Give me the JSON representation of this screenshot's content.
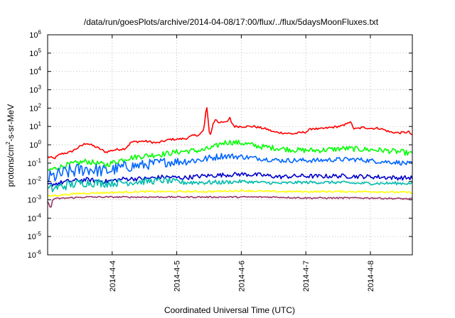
{
  "chart_data": {
    "type": "line",
    "title": "/data/run/goesPlots/archive/2014-04-08/17:00/flux/../flux/5daysMoonFluxes.txt",
    "xlabel": "Coordinated Universal Time (UTC)",
    "ylabel": "protons/cm²-s-sr-MeV",
    "ylabel_parts": {
      "a": "protons/cm",
      "sup": "2",
      "b": "-s-sr-MeV"
    },
    "yscale": "log",
    "ylim_exp": [
      -6,
      6
    ],
    "y_ticks": [
      {
        "base": "10",
        "exp": "-6",
        "e": -6
      },
      {
        "base": "10",
        "exp": "-5",
        "e": -5
      },
      {
        "base": "10",
        "exp": "-4",
        "e": -4
      },
      {
        "base": "10",
        "exp": "-3",
        "e": -3
      },
      {
        "base": "10",
        "exp": "-2",
        "e": -2
      },
      {
        "base": "10",
        "exp": "-1",
        "e": -1
      },
      {
        "base": "10",
        "exp": "0",
        "e": 0
      },
      {
        "base": "10",
        "exp": "1",
        "e": 1
      },
      {
        "base": "10",
        "exp": "2",
        "e": 2
      },
      {
        "base": "10",
        "exp": "3",
        "e": 3
      },
      {
        "base": "10",
        "exp": "4",
        "e": 4
      },
      {
        "base": "10",
        "exp": "5",
        "e": 5
      },
      {
        "base": "10",
        "exp": "6",
        "e": 6
      }
    ],
    "xlim": [
      "2014-04-03",
      "2014-04-08"
    ],
    "x_ticks": [
      {
        "label": "2014-4-4",
        "day": 1
      },
      {
        "label": "2014-4-5",
        "day": 2
      },
      {
        "label": "2014-4-6",
        "day": 3
      },
      {
        "label": "2014-4-7",
        "day": 4
      },
      {
        "label": "2014-4-8",
        "day": 5
      }
    ],
    "x_day_range": [
      0,
      5.65
    ],
    "grid": true,
    "series": [
      {
        "color": "#ff0000",
        "noise": 0.06,
        "points": [
          [
            0,
            -0.65
          ],
          [
            0.1,
            -0.75
          ],
          [
            0.2,
            -0.5
          ],
          [
            0.35,
            -0.4
          ],
          [
            0.5,
            -0.1
          ],
          [
            0.6,
            0.1
          ],
          [
            0.7,
            -0.05
          ],
          [
            0.8,
            -0.2
          ],
          [
            0.9,
            -0.4
          ],
          [
            1.0,
            -0.3
          ],
          [
            1.2,
            -0.2
          ],
          [
            1.3,
            0.15
          ],
          [
            1.5,
            0.2
          ],
          [
            1.7,
            0.1
          ],
          [
            1.9,
            0.3
          ],
          [
            2.0,
            0.3
          ],
          [
            2.15,
            0.35
          ],
          [
            2.25,
            0.5
          ],
          [
            2.35,
            0.55
          ],
          [
            2.42,
            0.8
          ],
          [
            2.45,
            1.8
          ],
          [
            2.47,
            2.0
          ],
          [
            2.5,
            0.8
          ],
          [
            2.52,
            0.5
          ],
          [
            2.56,
            1.1
          ],
          [
            2.6,
            1.4
          ],
          [
            2.65,
            1.2
          ],
          [
            2.7,
            1.3
          ],
          [
            2.75,
            1.2
          ],
          [
            2.8,
            1.3
          ],
          [
            2.82,
            1.5
          ],
          [
            2.85,
            1.2
          ],
          [
            2.9,
            1.0
          ],
          [
            3.2,
            1.0
          ],
          [
            3.4,
            0.85
          ],
          [
            3.5,
            0.7
          ],
          [
            3.8,
            0.6
          ],
          [
            4.0,
            0.7
          ],
          [
            4.1,
            0.9
          ],
          [
            4.2,
            0.85
          ],
          [
            4.4,
            0.95
          ],
          [
            4.6,
            1.05
          ],
          [
            4.65,
            1.25
          ],
          [
            4.7,
            1.2
          ],
          [
            4.75,
            0.85
          ],
          [
            4.9,
            0.95
          ],
          [
            5.0,
            0.9
          ],
          [
            5.15,
            0.9
          ],
          [
            5.3,
            0.7
          ],
          [
            5.45,
            0.65
          ],
          [
            5.6,
            0.7
          ],
          [
            5.65,
            0.5
          ]
        ]
      },
      {
        "color": "#00ff00",
        "noise": 0.15,
        "points": [
          [
            0,
            -1.4
          ],
          [
            0.3,
            -1.1
          ],
          [
            0.6,
            -0.9
          ],
          [
            0.9,
            -1.1
          ],
          [
            1.2,
            -0.75
          ],
          [
            1.5,
            -0.6
          ],
          [
            1.8,
            -0.5
          ],
          [
            2.1,
            -0.35
          ],
          [
            2.4,
            -0.3
          ],
          [
            2.6,
            -0.1
          ],
          [
            2.7,
            0.1
          ],
          [
            2.8,
            0.15
          ],
          [
            3.0,
            0.1
          ],
          [
            3.3,
            -0.1
          ],
          [
            3.6,
            -0.2
          ],
          [
            3.9,
            -0.3
          ],
          [
            4.2,
            -0.3
          ],
          [
            4.6,
            -0.2
          ],
          [
            4.9,
            -0.25
          ],
          [
            5.2,
            -0.3
          ],
          [
            5.5,
            -0.4
          ],
          [
            5.65,
            -0.5
          ]
        ]
      },
      {
        "color": "#0066ff",
        "noise": 0.28,
        "points": [
          [
            0,
            -1.85
          ],
          [
            0.3,
            -1.5
          ],
          [
            0.6,
            -1.3
          ],
          [
            0.9,
            -1.45
          ],
          [
            1.2,
            -1.2
          ],
          [
            1.5,
            -1.1
          ],
          [
            1.8,
            -0.95
          ],
          [
            2.1,
            -0.9
          ],
          [
            2.4,
            -0.8
          ],
          [
            2.7,
            -0.6
          ],
          [
            3.0,
            -0.65
          ],
          [
            3.3,
            -0.75
          ],
          [
            3.6,
            -0.85
          ],
          [
            3.9,
            -0.85
          ],
          [
            4.2,
            -0.85
          ],
          [
            4.5,
            -0.8
          ],
          [
            4.8,
            -0.8
          ],
          [
            5.1,
            -0.9
          ],
          [
            5.4,
            -0.95
          ],
          [
            5.65,
            -1.05
          ]
        ]
      },
      {
        "color": "#0000cc",
        "noise": 0.12,
        "points": [
          [
            0,
            -2.2
          ],
          [
            0.3,
            -2.0
          ],
          [
            0.6,
            -1.9
          ],
          [
            0.9,
            -2.0
          ],
          [
            1.2,
            -1.85
          ],
          [
            1.5,
            -1.85
          ],
          [
            1.8,
            -1.75
          ],
          [
            2.1,
            -1.8
          ],
          [
            2.4,
            -1.7
          ],
          [
            2.7,
            -1.65
          ],
          [
            3.0,
            -1.6
          ],
          [
            3.3,
            -1.65
          ],
          [
            3.6,
            -1.75
          ],
          [
            3.9,
            -1.7
          ],
          [
            4.2,
            -1.72
          ],
          [
            4.5,
            -1.7
          ],
          [
            4.8,
            -1.72
          ],
          [
            5.1,
            -1.75
          ],
          [
            5.4,
            -1.8
          ],
          [
            5.65,
            -1.8
          ]
        ]
      },
      {
        "color": "#00bbaa",
        "noise": 0.18,
        "points": [
          [
            0,
            -2.45
          ],
          [
            0.3,
            -2.2
          ],
          [
            0.6,
            -2.05
          ],
          [
            0.9,
            -2.1
          ],
          [
            1.2,
            -2.05
          ],
          [
            1.5,
            -2.0
          ],
          [
            1.8,
            -1.95
          ],
          [
            2.1,
            -2.05
          ],
          [
            2.4,
            -2.05
          ],
          [
            2.7,
            -2.05
          ],
          [
            3.0,
            -2.0
          ],
          [
            3.3,
            -2.05
          ],
          [
            3.6,
            -2.1
          ],
          [
            3.9,
            -2.05
          ],
          [
            4.2,
            -2.05
          ],
          [
            4.5,
            -2.05
          ],
          [
            4.8,
            -2.1
          ],
          [
            5.1,
            -2.1
          ],
          [
            5.4,
            -2.1
          ],
          [
            5.65,
            -2.1
          ]
        ]
      },
      {
        "color": "#ffff00",
        "noise": 0.05,
        "points": [
          [
            0,
            -2.8
          ],
          [
            0.5,
            -2.65
          ],
          [
            1.0,
            -2.6
          ],
          [
            1.5,
            -2.55
          ],
          [
            2.0,
            -2.55
          ],
          [
            2.5,
            -2.55
          ],
          [
            3.0,
            -2.5
          ],
          [
            3.5,
            -2.55
          ],
          [
            4.0,
            -2.55
          ],
          [
            4.5,
            -2.55
          ],
          [
            5.0,
            -2.55
          ],
          [
            5.65,
            -2.6
          ]
        ]
      },
      {
        "color": "#993366",
        "noise": 0.04,
        "points": [
          [
            0,
            -3.1
          ],
          [
            0.05,
            -3.5
          ],
          [
            0.08,
            -2.95
          ],
          [
            0.3,
            -2.9
          ],
          [
            0.6,
            -2.85
          ],
          [
            1.0,
            -2.85
          ],
          [
            1.5,
            -2.85
          ],
          [
            2.0,
            -2.85
          ],
          [
            2.5,
            -2.85
          ],
          [
            3.0,
            -2.85
          ],
          [
            3.5,
            -2.85
          ],
          [
            4.0,
            -2.9
          ],
          [
            4.5,
            -2.9
          ],
          [
            5.0,
            -2.9
          ],
          [
            5.65,
            -2.95
          ]
        ]
      }
    ]
  }
}
